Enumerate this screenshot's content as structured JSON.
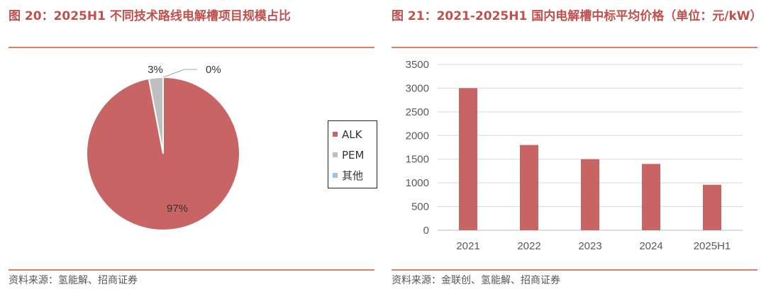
{
  "charts": {
    "pie": {
      "title": "图 20：2025H1 不同技术路线电解槽项目规模占比",
      "source": "资料来源：氢能解、招商证券"
    },
    "bar": {
      "title": "图 21：2021-2025H1 国内电解槽中标平均价格（单位：元/kW）",
      "source": "资料来源：金联创、氢能解、招商证券"
    }
  },
  "chart_data": [
    {
      "type": "pie",
      "title": "2025H1 不同技术路线电解槽项目规模占比",
      "categories": [
        "ALK",
        "PEM",
        "其他"
      ],
      "values": [
        97,
        3,
        0
      ],
      "data_labels": [
        "97%",
        "3%",
        "0%"
      ],
      "colors": [
        "#c86464",
        "#bfbfbf",
        "#9dc3e6"
      ],
      "legend_position": "right"
    },
    {
      "type": "bar",
      "title": "2021-2025H1 国内电解槽中标平均价格（单位：元/kW）",
      "categories": [
        "2021",
        "2022",
        "2023",
        "2024",
        "2025H1"
      ],
      "values": [
        3000,
        1800,
        1500,
        1400,
        960
      ],
      "ylim": [
        0,
        3500
      ],
      "yticks": [
        "0",
        "500",
        "1000",
        "1500",
        "2000",
        "2500",
        "3000",
        "3500"
      ],
      "grid": true,
      "bar_color": "#c86464"
    }
  ]
}
